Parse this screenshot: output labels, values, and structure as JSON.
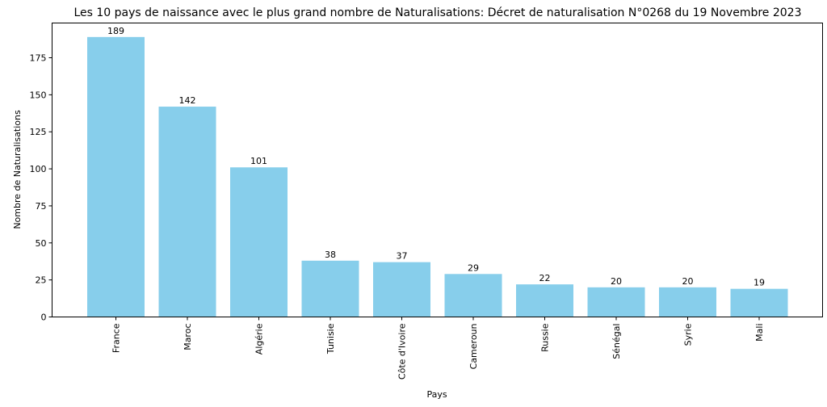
{
  "chart_data": {
    "type": "bar",
    "title": "Les 10 pays de naissance avec le plus grand nombre de Naturalisations: Décret de naturalisation N°0268 du 19 Novembre 2023",
    "xlabel": "Pays",
    "ylabel": "Nombre de Naturalisations",
    "categories": [
      "France",
      "Maroc",
      "Algérie",
      "Tunisie",
      "Côte d'Ivoire",
      "Cameroun",
      "Russie",
      "Sénégal",
      "Syrie",
      "Mali"
    ],
    "values": [
      189,
      142,
      101,
      38,
      37,
      29,
      22,
      20,
      20,
      19
    ],
    "yticks": [
      0,
      25,
      50,
      75,
      100,
      125,
      150,
      175
    ],
    "ylim": [
      0,
      198.45
    ],
    "bar_color": "#87ceeb",
    "grid": false,
    "legend": "none"
  }
}
